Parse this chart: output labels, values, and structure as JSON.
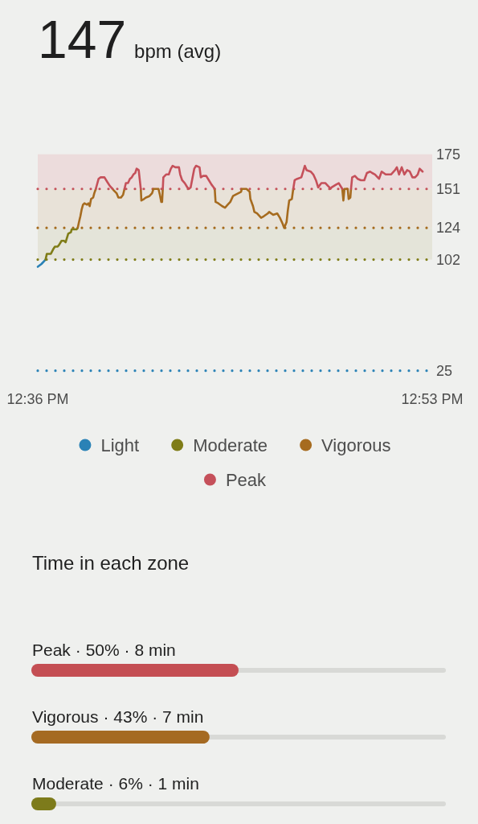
{
  "chart_data": [
    {
      "type": "line",
      "title": "147",
      "subtitle": "bpm (avg)",
      "xlim": [
        12.6,
        12.8833
      ],
      "xticks": [
        {
          "value": 12.6,
          "label": "12:36 PM"
        },
        {
          "value": 12.8833,
          "label": "12:53 PM"
        }
      ],
      "ylim": [
        25,
        175
      ],
      "yticks": [
        25,
        102,
        124,
        151,
        175
      ],
      "bands": [
        {
          "axis": "y",
          "from": 151,
          "to": 175,
          "color": "#ecdcdc"
        },
        {
          "axis": "y",
          "from": 124,
          "to": 151,
          "color": "#e8e2d8"
        },
        {
          "axis": "y",
          "from": 102,
          "to": 124,
          "color": "#e4e4d9"
        }
      ],
      "ref_lines": [
        {
          "axis": "y",
          "value": 151,
          "color": "#c5505a",
          "line_style": "dotted"
        },
        {
          "axis": "y",
          "value": 124,
          "color": "#a66b1f",
          "line_style": "dotted"
        },
        {
          "axis": "y",
          "value": 102,
          "color": "#7f7c17",
          "line_style": "dotted"
        },
        {
          "axis": "y",
          "value": 25,
          "color": "#2a82b6",
          "line_style": "dotted"
        }
      ],
      "legend": "bottom",
      "series": [
        {
          "name": "Light",
          "color": "#2a82b6",
          "x": [
            12.6,
            12.6027,
            12.6056
          ],
          "values": [
            97,
            99,
            102
          ]
        },
        {
          "name": "Moderate",
          "color": "#7f7c17",
          "x": [
            12.6056,
            12.6065,
            12.6094,
            12.611,
            12.6123,
            12.6143,
            12.6152,
            12.6171,
            12.619,
            12.62,
            12.6219,
            12.6238,
            12.6244,
            12.6279,
            12.6287
          ],
          "values": [
            102,
            106,
            106,
            109,
            111,
            111,
            112,
            115,
            115,
            114,
            120,
            121,
            123,
            123,
            124
          ]
        },
        {
          "name": "Vigorous",
          "color": "#a66b1f",
          "x": [
            12.6287,
            12.6296,
            12.6306,
            12.6316,
            12.6325,
            12.6335,
            12.6354,
            12.6364,
            12.6373,
            12.6383,
            12.6398,
            12.6406,
            12.6417,
            12.6437,
            12.6537,
            12.6546,
            12.6566,
            12.6579,
            12.6598,
            12.6613,
            12.6623,
            12.6633,
            12.674,
            12.6744,
            12.6763,
            12.6777,
            12.6802,
            12.6821,
            12.6831,
            12.6844,
            12.686,
            12.6867,
            12.6877,
            12.6887,
            12.6893,
            12.6898,
            12.6902,
            12.7271,
            12.7277,
            12.7297,
            12.7325,
            12.7345,
            12.7364,
            12.7383,
            12.7402,
            12.7421,
            12.7441,
            12.746,
            12.7466,
            12.7499,
            12.7522,
            12.7527,
            12.7546,
            12.7556,
            12.7575,
            12.7604,
            12.7623,
            12.7652,
            12.7662,
            12.7691,
            12.772,
            12.7739,
            12.7758,
            12.777,
            12.7787,
            12.7796,
            12.7806,
            12.7825,
            12.7835,
            12.7845,
            12.8187,
            12.8195,
            12.8203,
            12.8226,
            12.8233,
            12.8245,
            12.825
          ],
          "values": [
            124,
            128,
            132,
            137,
            140,
            141,
            140,
            141,
            139,
            144,
            145,
            148,
            151,
            null,
            151,
            150,
            148,
            145,
            145,
            147,
            151,
            null,
            151,
            143,
            144,
            145,
            146,
            148,
            151,
            151,
            151,
            151,
            147,
            142,
            142,
            151,
            null,
            151,
            142,
            141,
            139,
            138,
            140,
            142,
            146,
            147,
            148,
            149,
            151,
            151,
            149,
            144,
            139,
            135,
            134,
            131,
            132,
            134,
            135,
            133,
            134,
            131,
            127,
            124,
            128,
            136,
            143,
            144,
            151,
            null,
            151,
            143,
            151,
            151,
            144,
            145,
            151
          ]
        },
        {
          "name": "Peak",
          "color": "#c5505a",
          "x": [
            12.6417,
            12.6437,
            12.645,
            12.6479,
            12.6498,
            12.6518,
            12.6537,
            12.6546,
            12.6623,
            12.6633,
            12.6648,
            12.6662,
            12.6675,
            12.6687,
            12.67,
            12.671,
            12.6725,
            12.6733,
            12.674,
            12.6744,
            12.6898,
            12.6902,
            12.6922,
            12.6941,
            12.6956,
            12.6969,
            12.6988,
            12.7014,
            12.7023,
            12.7037,
            12.7056,
            12.7075,
            12.7085,
            12.7098,
            12.711,
            12.7124,
            12.7137,
            12.7162,
            12.7171,
            12.7187,
            12.721,
            12.7229,
            12.7248,
            12.7264,
            12.7271,
            12.7277,
            12.7835,
            12.7845,
            12.7864,
            12.7893,
            12.7906,
            12.7918,
            12.7931,
            12.796,
            12.7979,
            12.7998,
            12.8014,
            12.8021,
            12.8037,
            12.8066,
            12.8085,
            12.8095,
            12.8102,
            12.811,
            12.8143,
            12.8162,
            12.8181,
            12.8187,
            12.8195,
            12.825,
            12.8258,
            12.8278,
            12.8297,
            12.8321,
            12.8345,
            12.8364,
            12.8387,
            12.8402,
            12.8422,
            12.8451,
            12.847,
            12.8499,
            12.8537,
            12.8566,
            12.8579,
            12.8595,
            12.8614,
            12.8633,
            12.8653,
            12.8672,
            12.8691,
            12.871,
            12.8729,
            12.8743,
            12.8764
          ],
          "values": [
            151,
            158,
            159,
            159,
            156,
            153,
            151,
            null,
            151,
            155,
            155,
            158,
            159,
            161,
            162,
            165,
            164,
            157,
            151,
            null,
            151,
            159,
            161,
            161,
            165,
            167,
            166,
            166,
            161,
            157,
            155,
            152,
            151,
            152,
            158,
            165,
            167,
            166,
            159,
            160,
            160,
            157,
            154,
            152,
            151,
            null,
            151,
            157,
            158,
            159,
            163,
            167,
            164,
            163,
            161,
            157,
            152,
            153,
            155,
            155,
            153,
            152,
            151,
            152,
            154,
            155,
            152,
            151,
            null,
            151,
            159,
            160,
            158,
            157,
            157,
            162,
            163,
            162,
            161,
            158,
            163,
            161,
            161,
            164,
            166,
            161,
            166,
            161,
            164,
            163,
            159,
            159,
            161,
            165,
            163
          ]
        }
      ]
    },
    {
      "type": "bar",
      "orientation": "horizontal",
      "title": "Time in each zone",
      "categories": [
        "Peak",
        "Vigorous",
        "Moderate"
      ],
      "values": [
        50,
        43,
        6
      ],
      "value_labels": [
        "· 50% · 8 min",
        "· 43% · 7 min",
        "· 6% · 1 min"
      ],
      "colors": [
        "#c44e53",
        "#a56a22",
        "#7d7b1b"
      ],
      "xlim": [
        0,
        100
      ],
      "tick_labels": "y"
    }
  ]
}
